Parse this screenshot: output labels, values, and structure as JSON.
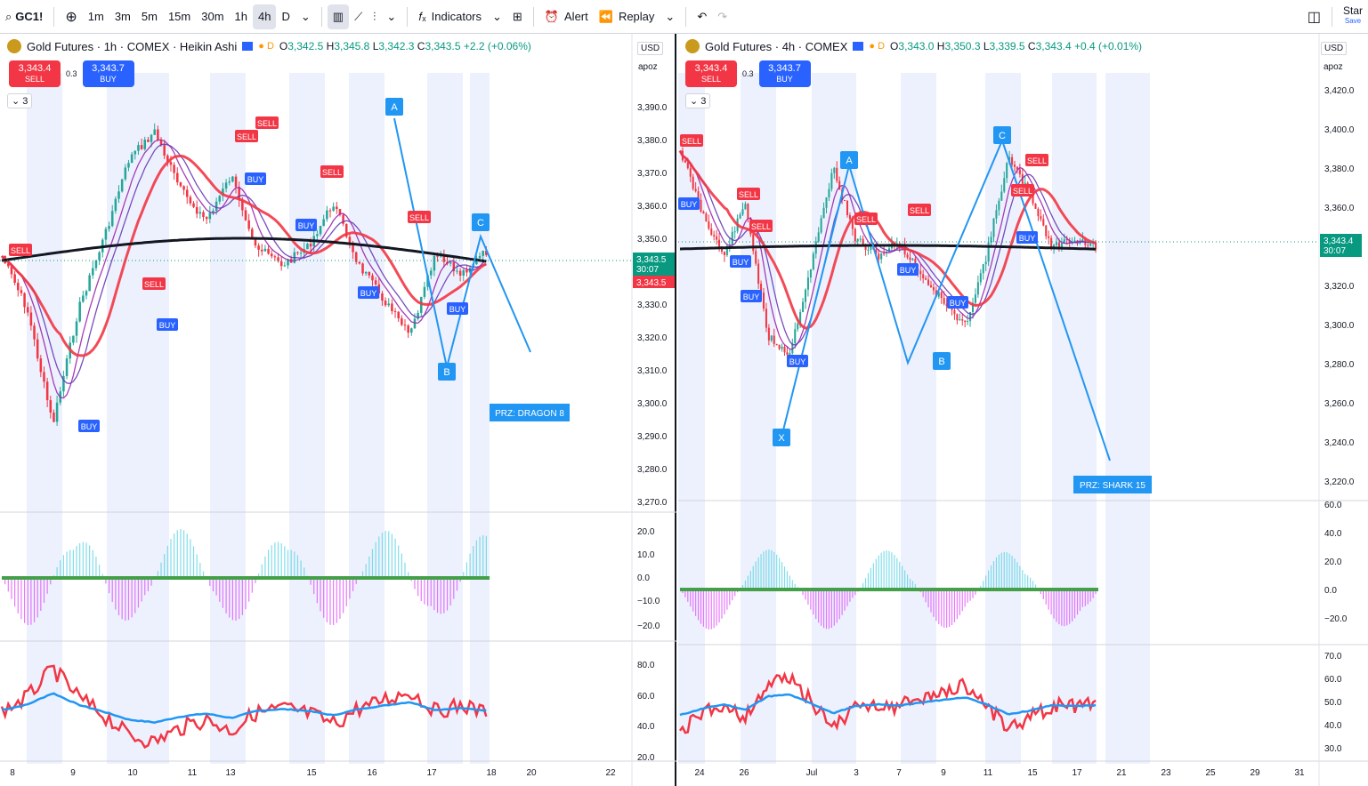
{
  "toolbar": {
    "symbol": "GC1!",
    "intervals": [
      "1m",
      "3m",
      "5m",
      "15m",
      "30m",
      "1h",
      "4h",
      "D"
    ],
    "active_interval": "4h",
    "indicators_label": "Indicators",
    "alert_label": "Alert",
    "replay_label": "Replay",
    "star_label": "Star",
    "save_label": "Save"
  },
  "left": {
    "title": "Gold Futures · 1h · COMEX · Heikin Ashi",
    "ohlc": {
      "o": "3,342.5",
      "h": "3,345.8",
      "l": "3,342.3",
      "c": "3,343.5",
      "chg": "+2.2 (+0.06%)"
    },
    "sell_price": "3,343.4",
    "buy_price": "3,343.7",
    "spread": "0.3",
    "sell_label": "SELL",
    "buy_label": "BUY",
    "collapse": "3",
    "currency": "USD",
    "scale": "apoz",
    "price_ticks": [
      "3,390.0",
      "3,380.0",
      "3,370.0",
      "3,360.0",
      "3,350.0",
      "3,330.0",
      "3,320.0",
      "3,310.0",
      "3,300.0",
      "3,290.0",
      "3,280.0",
      "3,270.0"
    ],
    "last_price": "3,343.5",
    "countdown": "30:07",
    "last_price2": "3,343.5",
    "osc_ticks": [
      "20.0",
      "10.0",
      "0.0",
      "−10.0",
      "−20.0"
    ],
    "rsi_ticks": [
      "80.0",
      "60.0",
      "40.0",
      "20.0"
    ],
    "x_ticks": [
      "8",
      "9",
      "10",
      "11",
      "13",
      "15",
      "16",
      "17",
      "18",
      "20",
      "22"
    ],
    "pattern_points": [
      "A",
      "B",
      "C"
    ],
    "przlabel": "PRZ: DRAGON 8"
  },
  "right": {
    "title": "Gold Futures · 4h · COMEX",
    "ohlc": {
      "o": "3,343.0",
      "h": "3,350.3",
      "l": "3,339.5",
      "c": "3,343.4",
      "chg": "+0.4 (+0.01%)"
    },
    "sell_price": "3,343.4",
    "buy_price": "3,343.7",
    "spread": "0.3",
    "sell_label": "SELL",
    "buy_label": "BUY",
    "collapse": "3",
    "currency": "USD",
    "scale": "apoz",
    "price_ticks": [
      "3,420.0",
      "3,400.0",
      "3,380.0",
      "3,360.0",
      "3,320.0",
      "3,300.0",
      "3,280.0",
      "3,260.0",
      "3,240.0",
      "3,220.0"
    ],
    "last_price": "3,343.4",
    "countdown": "30:07",
    "osc_ticks": [
      "60.0",
      "40.0",
      "20.0",
      "0.0",
      "−20.0"
    ],
    "rsi_ticks": [
      "70.0",
      "60.0",
      "50.0",
      "40.0",
      "30.0"
    ],
    "x_ticks": [
      "24",
      "26",
      "Jul",
      "3",
      "7",
      "9",
      "11",
      "15",
      "17",
      "21",
      "23",
      "25",
      "29",
      "31"
    ],
    "pattern_points": [
      "X",
      "A",
      "B",
      "C"
    ],
    "przlabel": "PRZ: SHARK 15"
  },
  "colors": {
    "sell": "#f23645",
    "buy": "#2962ff",
    "up": "#089981",
    "down": "#f23645",
    "pattern": "#2196f3",
    "black": "#131722"
  }
}
